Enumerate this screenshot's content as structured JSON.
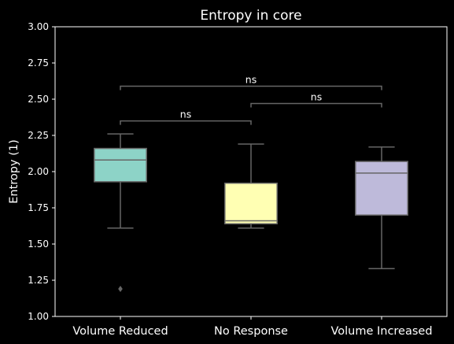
{
  "chart_data": {
    "type": "box",
    "title": "Entropy in core",
    "xlabel": "",
    "ylabel": "Entropy (1)",
    "ylim": [
      1.0,
      3.0
    ],
    "yticks": [
      "1.00",
      "1.25",
      "1.50",
      "1.75",
      "2.00",
      "2.25",
      "2.50",
      "2.75",
      "3.00"
    ],
    "categories": [
      "Volume Reduced",
      "No Response",
      "Volume Increased"
    ],
    "boxes": [
      {
        "category": "Volume Reduced",
        "whisker_low": 1.61,
        "q1": 1.93,
        "median": 2.08,
        "q3": 2.16,
        "whisker_high": 2.26,
        "outliers": [
          1.19
        ],
        "color": "#8dd3c7"
      },
      {
        "category": "No Response",
        "whisker_low": 1.61,
        "q1": 1.64,
        "median": 1.66,
        "q3": 1.92,
        "whisker_high": 2.19,
        "outliers": [],
        "color": "#ffffb3"
      },
      {
        "category": "Volume Increased",
        "whisker_low": 1.33,
        "q1": 1.7,
        "median": 1.99,
        "q3": 2.07,
        "whisker_high": 2.17,
        "outliers": [],
        "color": "#bebada"
      }
    ],
    "annotations": [
      {
        "from": "Volume Reduced",
        "to": "No Response",
        "y": 2.35,
        "text": "ns"
      },
      {
        "from": "No Response",
        "to": "Volume Increased",
        "y": 2.47,
        "text": "ns"
      },
      {
        "from": "Volume Reduced",
        "to": "Volume Increased",
        "y": 2.59,
        "text": "ns"
      }
    ],
    "grid": false,
    "background": "#000000",
    "line_color": "#666666",
    "text_color": "#ffffff"
  }
}
